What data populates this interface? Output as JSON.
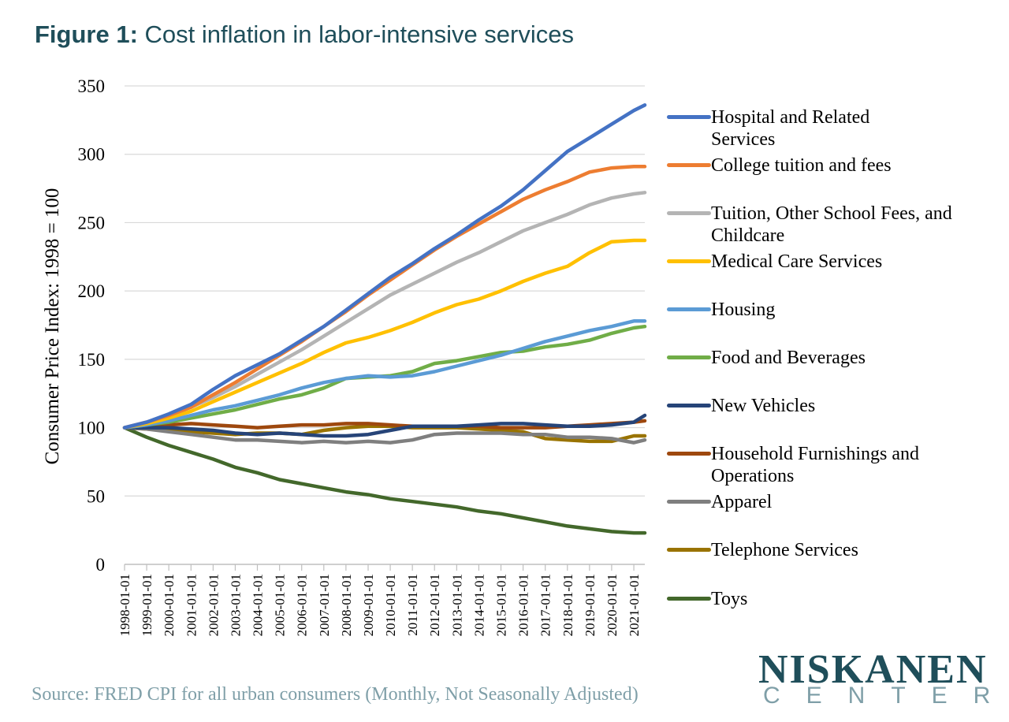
{
  "figure_title": {
    "prefix": "Figure 1:",
    "text": "Cost inflation in labor-intensive services"
  },
  "source": "Source: FRED CPI for all urban consumers (Monthly, Not Seasonally Adjusted)",
  "logo": {
    "main": "NISKANEN",
    "sub": "CENTER"
  },
  "chart_data": {
    "type": "line",
    "ylabel": "Consumer Price Index: 1998 = 100",
    "xlabel": "",
    "ylim": [
      0,
      350
    ],
    "yticks": [
      0,
      50,
      100,
      150,
      200,
      250,
      300,
      350
    ],
    "x_range": [
      "1998-01-01",
      "2021-07-01"
    ],
    "xticks": [
      "1998-01-01",
      "1999-01-01",
      "2000-01-01",
      "2001-01-01",
      "2002-01-01",
      "2003-01-01",
      "2004-01-01",
      "2005-01-01",
      "2006-01-01",
      "2007-01-01",
      "2008-01-01",
      "2009-01-01",
      "2010-01-01",
      "2011-01-01",
      "2012-01-01",
      "2013-01-01",
      "2014-01-01",
      "2015-01-01",
      "2016-01-01",
      "2017-01-01",
      "2018-01-01",
      "2019-01-01",
      "2020-01-01",
      "2021-01-01"
    ],
    "grid": true,
    "legend_position": "right",
    "x": [
      "1998-01-01",
      "1999-01-01",
      "2000-01-01",
      "2001-01-01",
      "2002-01-01",
      "2003-01-01",
      "2004-01-01",
      "2005-01-01",
      "2006-01-01",
      "2007-01-01",
      "2008-01-01",
      "2009-01-01",
      "2010-01-01",
      "2011-01-01",
      "2012-01-01",
      "2013-01-01",
      "2014-01-01",
      "2015-01-01",
      "2016-01-01",
      "2017-01-01",
      "2018-01-01",
      "2019-01-01",
      "2020-01-01",
      "2021-01-01",
      "2021-07-01"
    ],
    "series": [
      {
        "name": "Hospital and Related Services",
        "color": "#4472c4",
        "values": [
          100,
          104,
          110,
          117,
          128,
          138,
          146,
          154,
          164,
          174,
          186,
          198,
          210,
          220,
          231,
          241,
          252,
          262,
          274,
          288,
          302,
          312,
          322,
          332,
          336
        ]
      },
      {
        "name": "College tuition and fees",
        "color": "#ed7d31",
        "values": [
          100,
          104,
          109,
          115,
          124,
          133,
          143,
          153,
          163,
          174,
          185,
          197,
          208,
          219,
          230,
          240,
          249,
          258,
          267,
          274,
          280,
          287,
          290,
          291,
          291
        ]
      },
      {
        "name": "Tuition, Other School Fees, and Childcare",
        "color": "#b4b4b4",
        "values": [
          100,
          104,
          109,
          115,
          122,
          130,
          139,
          148,
          157,
          167,
          177,
          187,
          197,
          205,
          213,
          221,
          228,
          236,
          244,
          250,
          256,
          263,
          268,
          271,
          272
        ]
      },
      {
        "name": "Medical Care Services",
        "color": "#ffc000",
        "values": [
          100,
          103,
          107,
          112,
          119,
          126,
          133,
          140,
          147,
          155,
          162,
          166,
          171,
          177,
          184,
          190,
          194,
          200,
          207,
          213,
          218,
          228,
          236,
          237,
          237
        ]
      },
      {
        "name": "Housing",
        "color": "#5b9bd5",
        "values": [
          100,
          102,
          105,
          109,
          113,
          116,
          120,
          124,
          129,
          133,
          136,
          138,
          137,
          138,
          141,
          145,
          149,
          153,
          158,
          163,
          167,
          171,
          174,
          178,
          178
        ]
      },
      {
        "name": "Food and Beverages",
        "color": "#70ad47",
        "values": [
          100,
          102,
          104,
          107,
          110,
          113,
          117,
          121,
          124,
          129,
          136,
          137,
          138,
          141,
          147,
          149,
          152,
          155,
          156,
          159,
          161,
          164,
          169,
          173,
          174
        ]
      },
      {
        "name": "New Vehicles",
        "color": "#264478",
        "values": [
          100,
          100,
          100,
          99,
          98,
          96,
          95,
          96,
          95,
          94,
          94,
          95,
          98,
          101,
          101,
          101,
          102,
          103,
          103,
          102,
          101,
          101,
          102,
          104,
          109
        ]
      },
      {
        "name": "Household Furnishings and Operations",
        "color": "#9e480e",
        "values": [
          100,
          101,
          102,
          103,
          102,
          101,
          100,
          101,
          102,
          102,
          103,
          103,
          102,
          101,
          101,
          101,
          101,
          100,
          100,
          100,
          101,
          102,
          103,
          104,
          105
        ]
      },
      {
        "name": "Apparel",
        "color": "#7f7f7f",
        "values": [
          100,
          99,
          97,
          95,
          93,
          91,
          91,
          90,
          89,
          90,
          89,
          90,
          89,
          91,
          95,
          96,
          96,
          96,
          95,
          95,
          93,
          93,
          92,
          89,
          91
        ]
      },
      {
        "name": "Telephone Services",
        "color": "#997300",
        "values": [
          100,
          99,
          98,
          97,
          96,
          95,
          96,
          96,
          95,
          98,
          100,
          101,
          101,
          100,
          100,
          100,
          99,
          98,
          97,
          92,
          91,
          90,
          90,
          94,
          94
        ]
      },
      {
        "name": "Toys",
        "color": "#43682b",
        "values": [
          100,
          93,
          87,
          82,
          77,
          71,
          67,
          62,
          59,
          56,
          53,
          51,
          48,
          46,
          44,
          42,
          39,
          37,
          34,
          31,
          28,
          26,
          24,
          23,
          23
        ]
      }
    ]
  }
}
